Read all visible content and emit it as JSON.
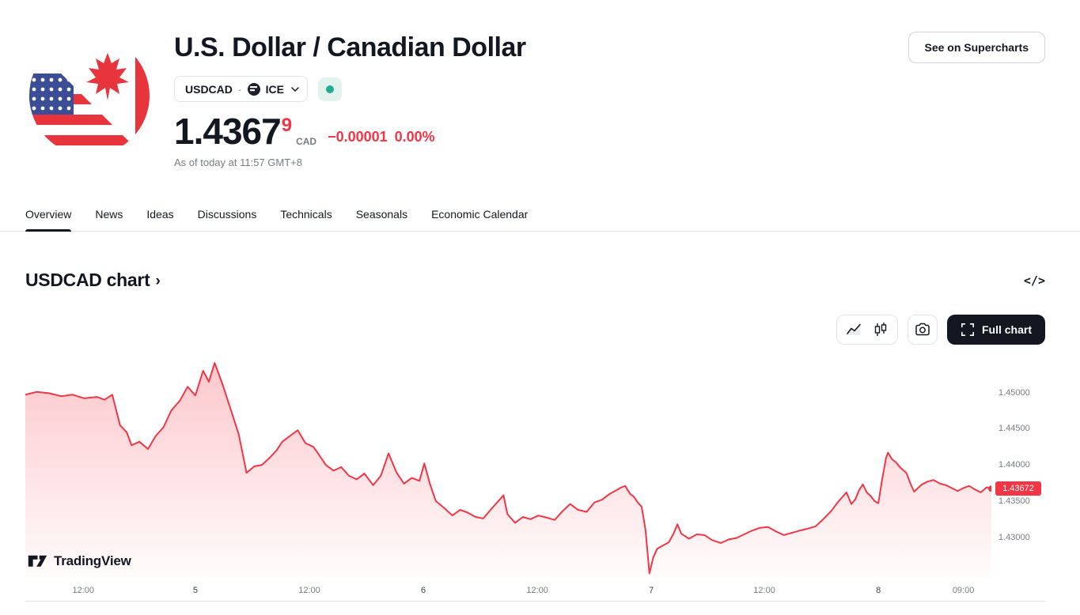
{
  "header": {
    "title": "U.S. Dollar / Canadian Dollar",
    "supercharts_button": "See on Supercharts",
    "symbol": "USDCAD",
    "separator": "·",
    "exchange": "ICE",
    "market_status": "open",
    "price": "1.4367",
    "price_sup": "9",
    "currency": "CAD",
    "change": "−0.00001",
    "change_percent": "0.00%",
    "as_of": "As of today at 11:57 GMT+8"
  },
  "tabs": [
    "Overview",
    "News",
    "Ideas",
    "Discussions",
    "Technicals",
    "Seasonals",
    "Economic Calendar"
  ],
  "active_tab": "Overview",
  "chart_section": {
    "title": "USDCAD chart",
    "chevron": "›",
    "code_icon_glyph": "</>",
    "full_chart_button": "Full chart",
    "watermark": "TradingView"
  },
  "colors": {
    "accent_red": "#f23645",
    "green": "#22ab94",
    "gray_text": "#787b86",
    "border": "#e0e3eb",
    "dark": "#131722"
  },
  "chart_data": {
    "type": "area",
    "title": "USDCAD chart",
    "legend": "none",
    "grid": "off",
    "line_color": "#f23645",
    "area_top": "rgba(247,82,95,0.32)",
    "area_bottom": "rgba(247,82,95,0.02)",
    "ylim": [
      1.4245,
      1.4552
    ],
    "y_ticks": [
      "1.45000",
      "1.44500",
      "1.44000",
      "1.43500",
      "1.43000"
    ],
    "x_ticks": [
      {
        "label": "12:00",
        "pos": 0.06,
        "type": "time"
      },
      {
        "label": "5",
        "pos": 0.176,
        "type": "day"
      },
      {
        "label": "12:00",
        "pos": 0.294,
        "type": "time"
      },
      {
        "label": "6",
        "pos": 0.412,
        "type": "day"
      },
      {
        "label": "12:00",
        "pos": 0.53,
        "type": "time"
      },
      {
        "label": "7",
        "pos": 0.648,
        "type": "day"
      },
      {
        "label": "12:00",
        "pos": 0.765,
        "type": "time"
      },
      {
        "label": "8",
        "pos": 0.883,
        "type": "day"
      },
      {
        "label": "09:00",
        "pos": 0.971,
        "type": "time"
      }
    ],
    "last_price": 1.43672,
    "last_price_label": "1.43672",
    "series": [
      {
        "name": "USDCAD",
        "points": [
          [
            0.0,
            1.4497
          ],
          [
            0.012,
            1.4501
          ],
          [
            0.025,
            1.4499
          ],
          [
            0.037,
            1.4495
          ],
          [
            0.049,
            1.4497
          ],
          [
            0.061,
            1.4492
          ],
          [
            0.074,
            1.4494
          ],
          [
            0.082,
            1.449
          ],
          [
            0.09,
            1.4497
          ],
          [
            0.098,
            1.4455
          ],
          [
            0.105,
            1.4445
          ],
          [
            0.11,
            1.4427
          ],
          [
            0.118,
            1.4432
          ],
          [
            0.127,
            1.4422
          ],
          [
            0.135,
            1.444
          ],
          [
            0.143,
            1.4452
          ],
          [
            0.151,
            1.4475
          ],
          [
            0.16,
            1.4489
          ],
          [
            0.168,
            1.4508
          ],
          [
            0.176,
            1.4496
          ],
          [
            0.184,
            1.453
          ],
          [
            0.19,
            1.4515
          ],
          [
            0.196,
            1.4541
          ],
          [
            0.204,
            1.4512
          ],
          [
            0.213,
            1.4475
          ],
          [
            0.221,
            1.4442
          ],
          [
            0.229,
            1.4389
          ],
          [
            0.237,
            1.4398
          ],
          [
            0.245,
            1.44
          ],
          [
            0.253,
            1.441
          ],
          [
            0.26,
            1.442
          ],
          [
            0.266,
            1.4432
          ],
          [
            0.274,
            1.444
          ],
          [
            0.282,
            1.4448
          ],
          [
            0.29,
            1.443
          ],
          [
            0.298,
            1.4425
          ],
          [
            0.303,
            1.4416
          ],
          [
            0.311,
            1.44
          ],
          [
            0.319,
            1.4392
          ],
          [
            0.327,
            1.4397
          ],
          [
            0.335,
            1.4385
          ],
          [
            0.343,
            1.438
          ],
          [
            0.351,
            1.4388
          ],
          [
            0.36,
            1.4372
          ],
          [
            0.368,
            1.4385
          ],
          [
            0.376,
            1.4416
          ],
          [
            0.384,
            1.439
          ],
          [
            0.392,
            1.4374
          ],
          [
            0.4,
            1.4382
          ],
          [
            0.408,
            1.4378
          ],
          [
            0.413,
            1.4402
          ],
          [
            0.419,
            1.4373
          ],
          [
            0.425,
            1.435
          ],
          [
            0.434,
            1.434
          ],
          [
            0.442,
            1.433
          ],
          [
            0.45,
            1.4338
          ],
          [
            0.458,
            1.4334
          ],
          [
            0.466,
            1.4328
          ],
          [
            0.474,
            1.4326
          ],
          [
            0.483,
            1.434
          ],
          [
            0.491,
            1.4352
          ],
          [
            0.495,
            1.4358
          ],
          [
            0.499,
            1.4332
          ],
          [
            0.507,
            1.432
          ],
          [
            0.515,
            1.4328
          ],
          [
            0.523,
            1.4325
          ],
          [
            0.531,
            1.433
          ],
          [
            0.54,
            1.4327
          ],
          [
            0.548,
            1.4324
          ],
          [
            0.556,
            1.4336
          ],
          [
            0.564,
            1.4346
          ],
          [
            0.572,
            1.4338
          ],
          [
            0.581,
            1.4335
          ],
          [
            0.589,
            1.4348
          ],
          [
            0.597,
            1.4352
          ],
          [
            0.605,
            1.436
          ],
          [
            0.609,
            1.4363
          ],
          [
            0.617,
            1.4369
          ],
          [
            0.621,
            1.4371
          ],
          [
            0.626,
            1.436
          ],
          [
            0.63,
            1.4356
          ],
          [
            0.634,
            1.4348
          ],
          [
            0.638,
            1.4342
          ],
          [
            0.642,
            1.431
          ],
          [
            0.646,
            1.425
          ],
          [
            0.65,
            1.4272
          ],
          [
            0.654,
            1.4284
          ],
          [
            0.662,
            1.429
          ],
          [
            0.666,
            1.4293
          ],
          [
            0.671,
            1.4305
          ],
          [
            0.675,
            1.4318
          ],
          [
            0.679,
            1.4305
          ],
          [
            0.687,
            1.4298
          ],
          [
            0.695,
            1.4304
          ],
          [
            0.703,
            1.4303
          ],
          [
            0.711,
            1.4296
          ],
          [
            0.72,
            1.4292
          ],
          [
            0.728,
            1.4297
          ],
          [
            0.736,
            1.4299
          ],
          [
            0.744,
            1.4304
          ],
          [
            0.752,
            1.4309
          ],
          [
            0.76,
            1.4313
          ],
          [
            0.769,
            1.4314
          ],
          [
            0.777,
            1.4308
          ],
          [
            0.785,
            1.4303
          ],
          [
            0.793,
            1.4306
          ],
          [
            0.801,
            1.4309
          ],
          [
            0.81,
            1.4312
          ],
          [
            0.818,
            1.4315
          ],
          [
            0.826,
            1.4325
          ],
          [
            0.834,
            1.4336
          ],
          [
            0.842,
            1.435
          ],
          [
            0.85,
            1.4362
          ],
          [
            0.855,
            1.4346
          ],
          [
            0.859,
            1.4352
          ],
          [
            0.863,
            1.4365
          ],
          [
            0.867,
            1.4373
          ],
          [
            0.871,
            1.4362
          ],
          [
            0.875,
            1.4357
          ],
          [
            0.879,
            1.435
          ],
          [
            0.883,
            1.4347
          ],
          [
            0.887,
            1.438
          ],
          [
            0.891,
            1.441
          ],
          [
            0.893,
            1.4417
          ],
          [
            0.897,
            1.4408
          ],
          [
            0.901,
            1.4404
          ],
          [
            0.906,
            1.4396
          ],
          [
            0.912,
            1.4389
          ],
          [
            0.916,
            1.4375
          ],
          [
            0.92,
            1.4363
          ],
          [
            0.924,
            1.4368
          ],
          [
            0.928,
            1.4373
          ],
          [
            0.934,
            1.4377
          ],
          [
            0.94,
            1.4379
          ],
          [
            0.947,
            1.4374
          ],
          [
            0.953,
            1.4372
          ],
          [
            0.959,
            1.4368
          ],
          [
            0.965,
            1.4364
          ],
          [
            0.971,
            1.4368
          ],
          [
            0.977,
            1.4371
          ],
          [
            0.983,
            1.4366
          ],
          [
            0.989,
            1.4362
          ],
          [
            0.995,
            1.4369
          ],
          [
            1.0,
            1.43672
          ]
        ]
      }
    ]
  }
}
